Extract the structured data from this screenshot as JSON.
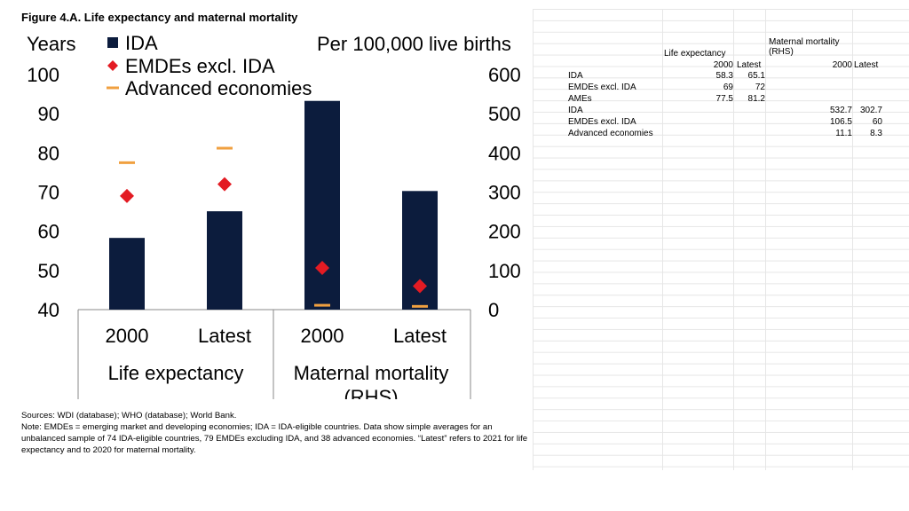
{
  "figure_title": "Figure 4.A. Life expectancy and maternal mortality",
  "colors": {
    "ida": "#0c1c3d",
    "emde": "#e31b23",
    "adv": "#f0a040"
  },
  "chart_data": {
    "type": "bar",
    "title": "Figure 4.A. Life expectancy and maternal mortality",
    "left_axis": {
      "label": "Years",
      "ylim": [
        40,
        100
      ],
      "ticks": [
        "100",
        "90",
        "80",
        "70",
        "60",
        "50",
        "40"
      ]
    },
    "right_axis": {
      "label": "Per 100,000 live births",
      "ylim": [
        0,
        600
      ],
      "ticks": [
        "600",
        "500",
        "400",
        "300",
        "200",
        "100",
        "0"
      ]
    },
    "categories": [
      "2000",
      "Latest",
      "2000",
      "Latest"
    ],
    "groups": [
      "Life expectancy",
      "Maternal mortality (RHS)"
    ],
    "series": [
      {
        "name": "IDA",
        "values": [
          58.3,
          65.1,
          532.7,
          302.7
        ]
      },
      {
        "name": "EMDEs excl. IDA",
        "values": [
          69,
          72,
          106.5,
          60
        ]
      },
      {
        "name": "Advanced economies",
        "values": [
          77.5,
          81.2,
          11.1,
          8.3
        ]
      }
    ],
    "legend": {
      "placement": "top-left"
    },
    "grid": false
  },
  "table": {
    "header_life": "Life expectancy",
    "header_mm_1": "Maternal mortality",
    "header_mm_2": "(RHS)",
    "col_2000": "2000",
    "col_latest": "Latest",
    "rows_life": [
      {
        "label": "IDA",
        "v2000": "58.3",
        "vlatest": "65.1"
      },
      {
        "label": "EMDEs excl. IDA",
        "v2000": "69",
        "vlatest": "72"
      },
      {
        "label": "AMEs",
        "v2000": "77.5",
        "vlatest": "81.2"
      }
    ],
    "rows_mm": [
      {
        "label": "IDA",
        "v2000": "532.7",
        "vlatest": "302.7"
      },
      {
        "label": "EMDEs excl. IDA",
        "v2000": "106.5",
        "vlatest": "60"
      },
      {
        "label": "Advanced economies",
        "v2000": "11.1",
        "vlatest": "8.3"
      }
    ]
  },
  "source": "Sources: WDI (database); WHO (database); World Bank.",
  "note": "Note: EMDEs = emerging market and developing economies; IDA = IDA-eligible countries. Data show simple averages for an unbalanced sample of 74 IDA-eligible countries, 79 EMDEs excluding IDA, and 38 advanced economies. “Latest” refers to 2021 for life expectancy and to 2020 for maternal mortality."
}
